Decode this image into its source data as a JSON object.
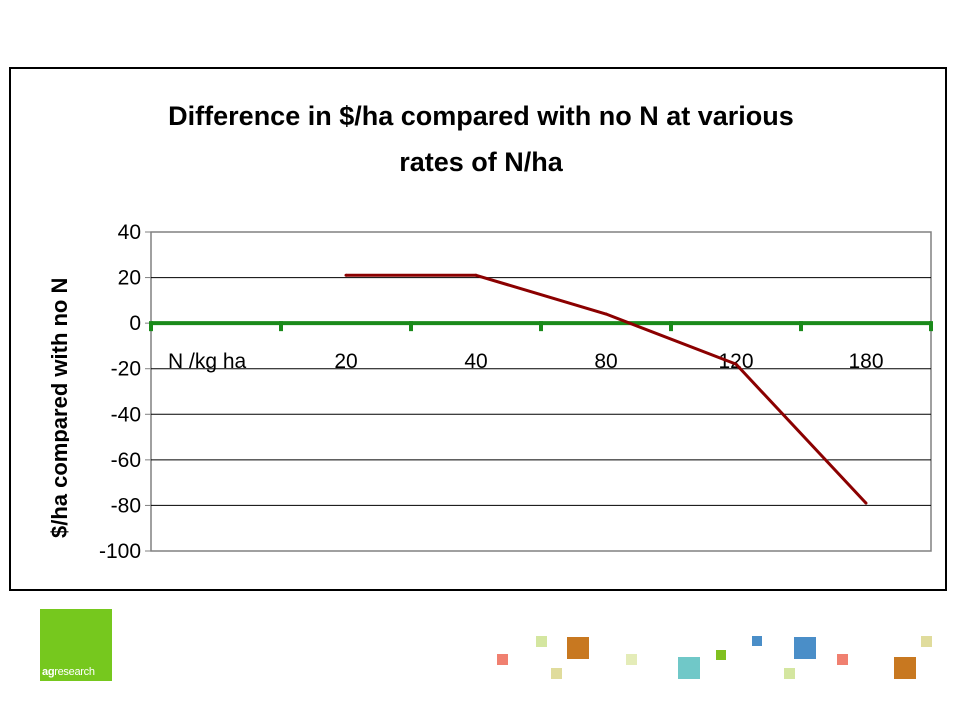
{
  "chart_data": {
    "type": "line",
    "title": "Difference in $/ha compared with no N at various rates of N/ha",
    "title_lines": [
      "Difference in $/ha compared with no N at various",
      "rates of N/ha"
    ],
    "ylabel": "$/ha compared with no N",
    "xlabel": "",
    "ylim": [
      -100,
      40
    ],
    "yticks": [
      40,
      20,
      0,
      -20,
      -40,
      -60,
      -80,
      -100
    ],
    "x_axis_label": "N /kg ha",
    "categories": [
      "20",
      "40",
      "80",
      "120",
      "180"
    ],
    "series": [
      {
        "values": [
          21,
          21,
          4,
          -18,
          -79
        ],
        "color": "#8b0000"
      }
    ],
    "axis_color": "#1a8a1a",
    "grid": true
  },
  "logo": {
    "text_bold": "ag",
    "text_rest": "research",
    "color": "#76c81e"
  },
  "decor_colors": [
    "#f08070",
    "#d4e6a0",
    "#c87820",
    "#e0dc9c",
    "#70c8c8",
    "#80c020",
    "#4a8ec8"
  ]
}
